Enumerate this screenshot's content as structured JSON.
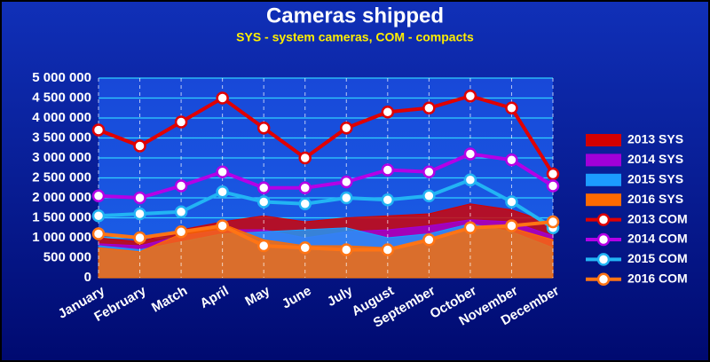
{
  "chart_data": {
    "type": "combo",
    "title": "Cameras shipped",
    "subtitle": "SYS - system cameras, COM - compacts",
    "categories": [
      "January",
      "February",
      "Match",
      "April",
      "May",
      "June",
      "July",
      "August",
      "September",
      "October",
      "November",
      "December"
    ],
    "ylim": [
      0,
      5000000
    ],
    "yticks": [
      0,
      {
        "value": 500000,
        "label": "500 000"
      },
      {
        "value": 1000000,
        "label": "1 000 000"
      },
      {
        "value": 1500000,
        "label": "1 500 000"
      },
      {
        "value": 2000000,
        "label": "2 000 000"
      },
      {
        "value": 2500000,
        "label": "2 500 000"
      },
      {
        "value": 3000000,
        "label": "3 000 000"
      },
      {
        "value": 3500000,
        "label": "3 500 000"
      },
      {
        "value": 4000000,
        "label": "4 000 000"
      },
      {
        "value": 4500000,
        "label": "4 500 000"
      },
      {
        "value": 5000000,
        "label": "5 000 000"
      }
    ],
    "grid": true,
    "legend": "right",
    "series": [
      {
        "name": "2013 SYS",
        "type": "area",
        "color": "#d40000",
        "values": [
          1000000,
          900000,
          1200000,
          1400000,
          1550000,
          1400000,
          1500000,
          1550000,
          1600000,
          1850000,
          1700000,
          1350000
        ]
      },
      {
        "name": "2014 SYS",
        "type": "area",
        "color": "#a000d8",
        "values": [
          850000,
          800000,
          1050000,
          1200000,
          1200000,
          1000000,
          1150000,
          1200000,
          1300000,
          1450000,
          1400000,
          1050000
        ]
      },
      {
        "name": "2015 SYS",
        "type": "area",
        "color": "#1c9cff",
        "values": [
          800000,
          700000,
          900000,
          1100000,
          1150000,
          1200000,
          1250000,
          1000000,
          1100000,
          1350000,
          1150000,
          750000
        ]
      },
      {
        "name": "2016 SYS",
        "type": "area",
        "color": "#ff6a00",
        "values": [
          750000,
          650000,
          1100000,
          1350000,
          950000,
          800000,
          800000,
          750000,
          900000,
          1250000,
          1250000,
          950000
        ]
      },
      {
        "name": "2013 COM",
        "type": "line",
        "color": "#e00000",
        "values": [
          3700000,
          3300000,
          3900000,
          4500000,
          3750000,
          3000000,
          3750000,
          4150000,
          4250000,
          4550000,
          4250000,
          2600000
        ]
      },
      {
        "name": "2014 COM",
        "type": "line",
        "color": "#b400e6",
        "values": [
          2050000,
          2000000,
          2300000,
          2650000,
          2250000,
          2250000,
          2400000,
          2700000,
          2650000,
          3100000,
          2950000,
          2300000
        ]
      },
      {
        "name": "2015 COM",
        "type": "line",
        "color": "#22b4f4",
        "values": [
          1550000,
          1600000,
          1650000,
          2150000,
          1900000,
          1850000,
          2000000,
          1950000,
          2050000,
          2450000,
          1900000,
          1250000
        ]
      },
      {
        "name": "2016 COM",
        "type": "line",
        "color": "#ff7414",
        "values": [
          1100000,
          1000000,
          1150000,
          1300000,
          800000,
          750000,
          700000,
          700000,
          950000,
          1250000,
          1300000,
          1400000
        ]
      }
    ]
  }
}
